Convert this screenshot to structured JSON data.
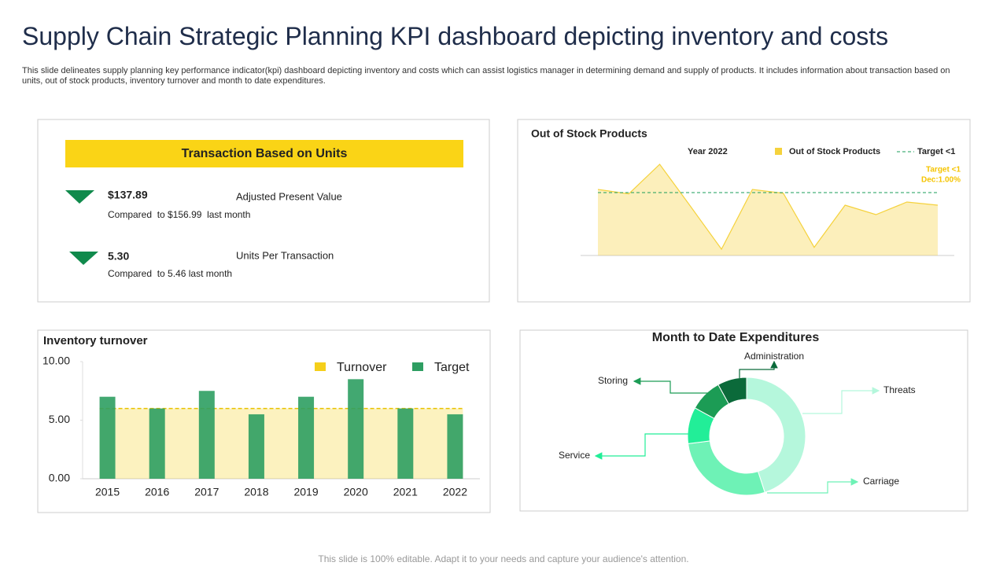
{
  "header": {
    "title": "Supply Chain Strategic Planning KPI dashboard depicting inventory and costs",
    "subtitle": "This slide delineates supply planning key performance indicator(kpi) dashboard depicting inventory and costs which can assist logistics manager in determining demand and supply of products. It includes information about transaction based on units, out of stock products, inventory turnover and month to date expenditures."
  },
  "kpi": {
    "title": "Transaction Based on Units",
    "items": [
      {
        "value": "$137.89",
        "label": "Adjusted Present Value",
        "compare": "Compared  to $156.99  last month"
      },
      {
        "value": "5.30",
        "label": "Units Per Transaction",
        "compare": "Compared  to 5.46 last month"
      }
    ]
  },
  "footer": "This slide is 100% editable. Adapt it to your needs and capture your audience's attention.",
  "chart_data": [
    {
      "type": "area",
      "title": "Out of Stock Products",
      "subtitle": "Year 2022",
      "categories": [
        null,
        null,
        null,
        null,
        null,
        null,
        null,
        null,
        null,
        null,
        null,
        null
      ],
      "series": [
        {
          "name": "Out of Stock Products",
          "color": "#f5d23c",
          "values": [
            1.05,
            0.98,
            1.45,
            0.78,
            0.1,
            1.05,
            0.99,
            0.13,
            0.8,
            0.65,
            0.85,
            0.8
          ]
        }
      ],
      "target": {
        "name": "Target <1",
        "value": 1,
        "color": "#1a9e5a"
      },
      "annotations": [
        "Target <1",
        "Dec:1.00%"
      ],
      "ylim": [
        0,
        1.5
      ]
    },
    {
      "type": "bar",
      "title": "Inventory turnover",
      "categories": [
        "2015",
        "2016",
        "2017",
        "2018",
        "2019",
        "2020",
        "2021",
        "2022"
      ],
      "series": [
        {
          "name": "Turnover",
          "color": "#f5cf1a",
          "kind": "area",
          "values": [
            6,
            6,
            6,
            6,
            6,
            6,
            6,
            6
          ]
        },
        {
          "name": "Target",
          "color": "#2e9e62",
          "kind": "bar",
          "values": [
            7,
            6,
            7.5,
            5.5,
            7,
            8.5,
            6,
            5.5
          ]
        }
      ],
      "ylim": [
        0,
        10
      ],
      "yticks": [
        {
          "value": 0,
          "label": "0.00"
        },
        {
          "value": 5,
          "label": "5.00"
        },
        {
          "value": 10,
          "label": "10.00"
        }
      ]
    },
    {
      "type": "pie",
      "title": "Month to Date Expenditures",
      "categories": [
        "Threats",
        "Carriage",
        "Service",
        "Storing",
        "Administration"
      ],
      "values": [
        45,
        28,
        10,
        9,
        8
      ],
      "colors": [
        "#b5f7dc",
        "#6ef2b6",
        "#22ee98",
        "#1c9c55",
        "#0b6a3a"
      ]
    }
  ]
}
